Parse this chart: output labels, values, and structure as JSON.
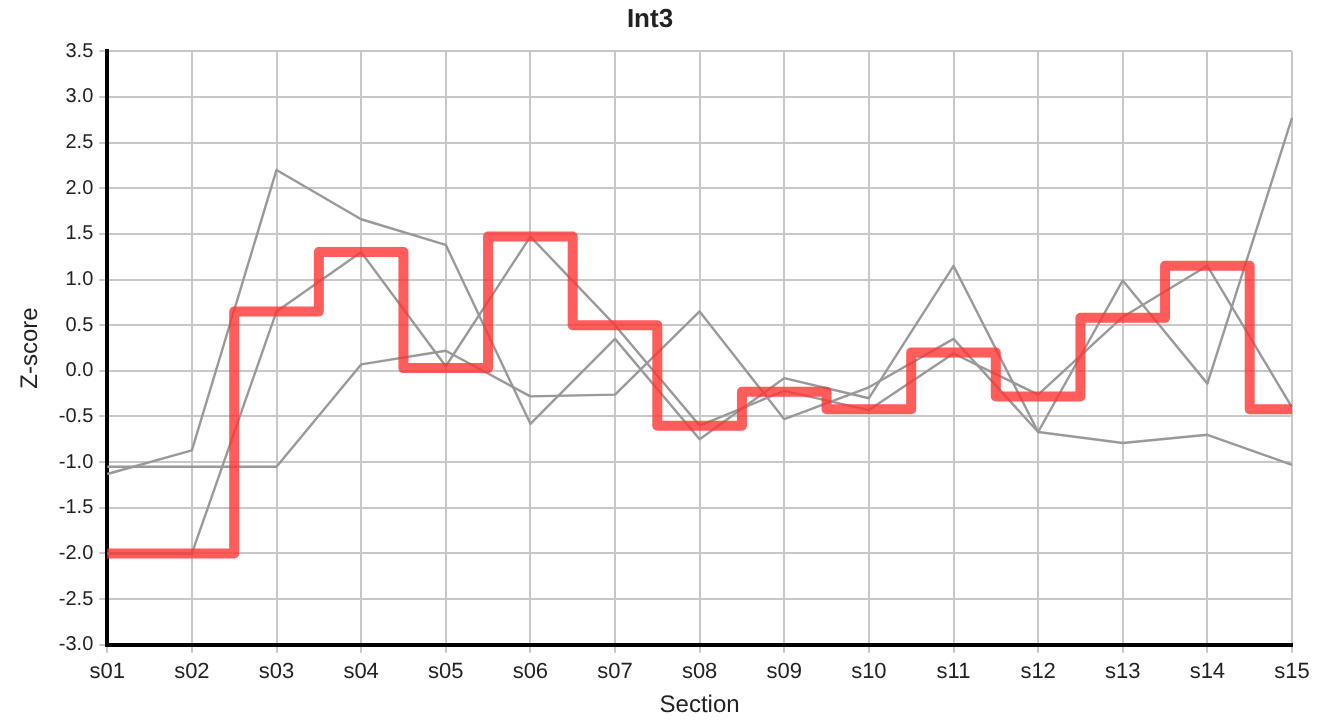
{
  "chart_data": {
    "type": "line",
    "title": "Int3",
    "xlabel": "Section",
    "ylabel": "Z-score",
    "categories": [
      "s01",
      "s02",
      "s03",
      "s04",
      "s05",
      "s06",
      "s07",
      "s08",
      "s09",
      "s10",
      "s11",
      "s12",
      "s13",
      "s14",
      "s15"
    ],
    "series": [
      {
        "type": "line",
        "color": "#999999",
        "values": [
          -1.13,
          -0.87,
          2.2,
          1.66,
          1.38,
          -0.58,
          0.35,
          -0.75,
          -0.08,
          -0.3,
          1.15,
          -0.67,
          0.99,
          -0.14,
          2.77
        ]
      },
      {
        "type": "line",
        "color": "#999999",
        "values": [
          -1.05,
          -1.05,
          -1.05,
          0.07,
          0.22,
          -0.28,
          -0.26,
          0.65,
          -0.53,
          -0.18,
          0.35,
          -0.67,
          -0.79,
          -0.7,
          -1.03
        ]
      },
      {
        "type": "line",
        "color": "#999999",
        "values": [
          -2.0,
          -2.0,
          0.65,
          1.3,
          0.05,
          1.47,
          0.5,
          -0.6,
          -0.22,
          -0.43,
          0.19,
          -0.26,
          0.59,
          1.15,
          -0.4
        ]
      },
      {
        "type": "step",
        "color": "#ff3333",
        "values": [
          -2.0,
          -2.0,
          0.65,
          1.3,
          0.03,
          1.47,
          0.5,
          -0.6,
          -0.23,
          -0.42,
          0.2,
          -0.28,
          0.58,
          1.15,
          -0.42
        ]
      }
    ],
    "ylim": [
      -3,
      3.5
    ],
    "yticks": [
      {
        "value": -3,
        "label": "-3.0"
      },
      -2.5,
      {
        "value": -2,
        "label": "-2.0"
      },
      -1.5,
      {
        "value": -1,
        "label": "-1.0"
      },
      -0.5,
      {
        "value": 0,
        "label": "0.0"
      },
      0.5,
      {
        "value": 1,
        "label": "1.0"
      },
      1.5,
      {
        "value": 2,
        "label": "2.0"
      },
      2.5,
      {
        "value": 3,
        "label": "3.0"
      },
      3.5
    ],
    "grid": true,
    "legend": false,
    "marker": "none",
    "line_style": "solid"
  }
}
